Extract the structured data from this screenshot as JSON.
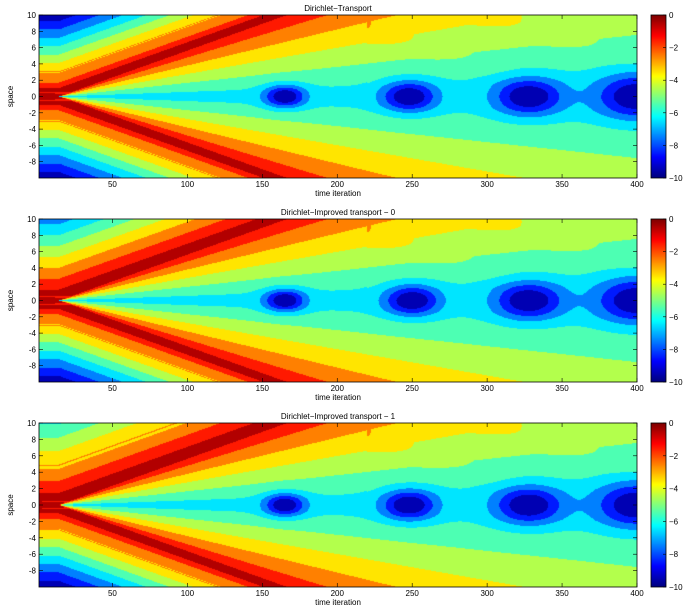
{
  "chart_data": [
    {
      "type": "heatmap",
      "title": "Dirichlet−Transport",
      "xlabel": "time iteration",
      "ylabel": "space",
      "xlim": [
        1,
        400
      ],
      "ylim": [
        -10,
        10
      ],
      "x_ticks": [
        50,
        100,
        150,
        200,
        250,
        300,
        350,
        400
      ],
      "y_ticks": [
        10,
        8,
        6,
        4,
        2,
        0,
        -2,
        -4,
        -6,
        -8
      ],
      "colorbar": {
        "range": [
          -10,
          0
        ],
        "ticks": [
          0,
          -2,
          -4,
          -6,
          -8,
          -10
        ],
        "colormap": "jet"
      },
      "contour_levels": [
        -10,
        -9,
        -8,
        -7,
        -6,
        -5,
        -4,
        -3,
        -2,
        -1,
        0
      ],
      "vortex_centers_x": [
        165,
        248,
        328,
        400
      ],
      "upper_band_spread": 1.0
    },
    {
      "type": "heatmap",
      "title": "Dirichlet−Improved transport − 0",
      "xlabel": "time iteration",
      "ylabel": "space",
      "xlim": [
        1,
        400
      ],
      "ylim": [
        -10,
        10
      ],
      "x_ticks": [
        50,
        100,
        150,
        200,
        250,
        300,
        350,
        400
      ],
      "y_ticks": [
        10,
        8,
        6,
        4,
        2,
        0,
        -2,
        -4,
        -6,
        -8
      ],
      "colorbar": {
        "range": [
          -10,
          0
        ],
        "ticks": [
          0,
          -2,
          -4,
          -6,
          -8,
          -10
        ],
        "colormap": "jet"
      },
      "contour_levels": [
        -10,
        -9,
        -8,
        -7,
        -6,
        -5,
        -4,
        -3,
        -2,
        -1,
        0
      ],
      "vortex_centers_x": [
        165,
        250,
        328,
        400
      ],
      "upper_band_spread": 1.3
    },
    {
      "type": "heatmap",
      "title": "Dirichlet−Improved transport − 1",
      "xlabel": "time iteration",
      "ylabel": "space",
      "xlim": [
        1,
        400
      ],
      "ylim": [
        -10,
        10
      ],
      "x_ticks": [
        50,
        100,
        150,
        200,
        250,
        300,
        350,
        400
      ],
      "y_ticks": [
        10,
        8,
        6,
        4,
        2,
        0,
        -2,
        -4,
        -6,
        -8
      ],
      "colorbar": {
        "range": [
          -10,
          0
        ],
        "ticks": [
          0,
          -2,
          -4,
          -6,
          -8,
          -10
        ],
        "colormap": "jet"
      },
      "contour_levels": [
        -10,
        -9,
        -8,
        -7,
        -6,
        -5,
        -4,
        -3,
        -2,
        -1,
        0
      ],
      "vortex_centers_x": [
        165,
        248,
        328,
        400
      ],
      "upper_band_spread": 1.6
    }
  ]
}
